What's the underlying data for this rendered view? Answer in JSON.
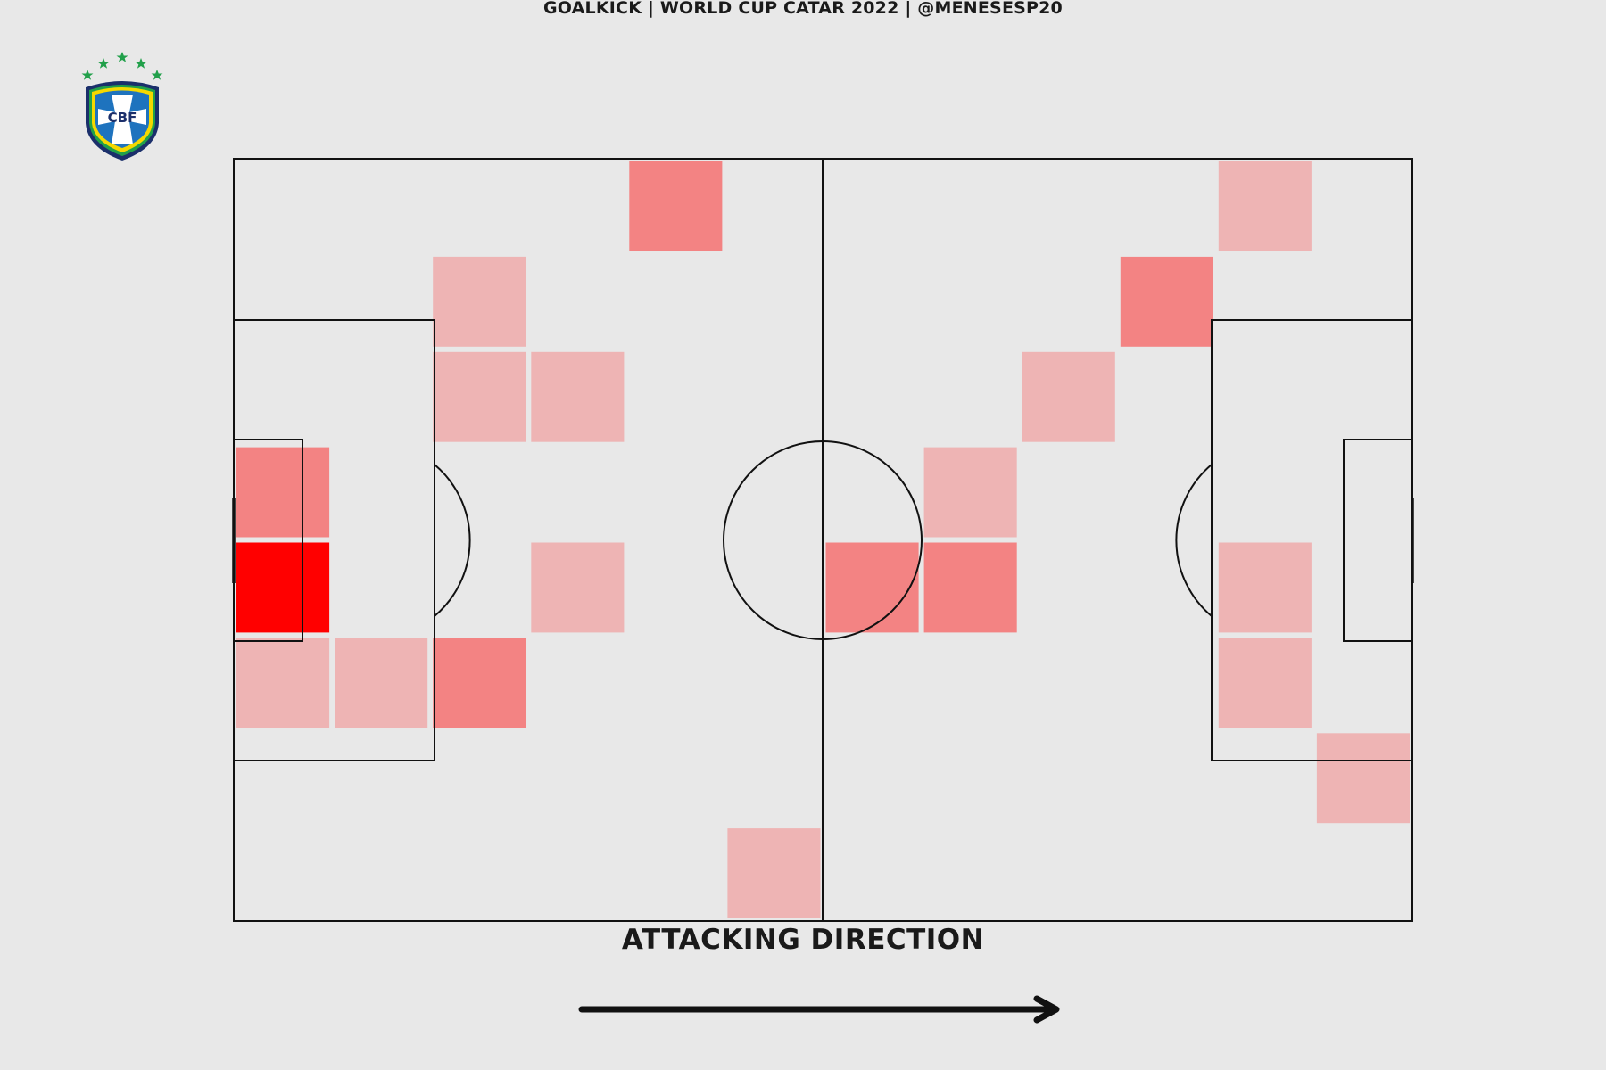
{
  "header": {
    "title": "GOALKICK | WORLD CUP CATAR 2022 | @MENESESP20"
  },
  "logo": {
    "text": "CBF",
    "colors": {
      "shield": "#1e73be",
      "border": "#1b2f6b",
      "yellow": "#f5d800",
      "green": "#21a04a",
      "star": "#21a04a"
    }
  },
  "footer": {
    "direction_label": "ATTACKING DIRECTION"
  },
  "colors": {
    "background": "#e8e8e8",
    "pitch_lines": "#111111",
    "arrow": "#111111"
  },
  "chart_data": {
    "type": "heatmap",
    "grid": {
      "columns": 12,
      "rows": 8
    },
    "color_scale": {
      "1": "#eeb4b4",
      "2": "#f38383",
      "3": "#ff0000"
    },
    "cells": [
      {
        "col": 4,
        "row": 0,
        "level": 2
      },
      {
        "col": 10,
        "row": 0,
        "level": 1
      },
      {
        "col": 2,
        "row": 1,
        "level": 1
      },
      {
        "col": 9,
        "row": 1,
        "level": 2
      },
      {
        "col": 2,
        "row": 2,
        "level": 1
      },
      {
        "col": 3,
        "row": 2,
        "level": 1
      },
      {
        "col": 8,
        "row": 2,
        "level": 1
      },
      {
        "col": 0,
        "row": 3,
        "level": 2
      },
      {
        "col": 7,
        "row": 3,
        "level": 1
      },
      {
        "col": 0,
        "row": 4,
        "level": 3
      },
      {
        "col": 3,
        "row": 4,
        "level": 1
      },
      {
        "col": 6,
        "row": 4,
        "level": 2
      },
      {
        "col": 7,
        "row": 4,
        "level": 2
      },
      {
        "col": 10,
        "row": 4,
        "level": 1
      },
      {
        "col": 0,
        "row": 5,
        "level": 1
      },
      {
        "col": 1,
        "row": 5,
        "level": 1
      },
      {
        "col": 2,
        "row": 5,
        "level": 2
      },
      {
        "col": 10,
        "row": 5,
        "level": 1
      },
      {
        "col": 11,
        "row": 6,
        "level": 1
      },
      {
        "col": 5,
        "row": 7,
        "level": 1
      }
    ]
  }
}
